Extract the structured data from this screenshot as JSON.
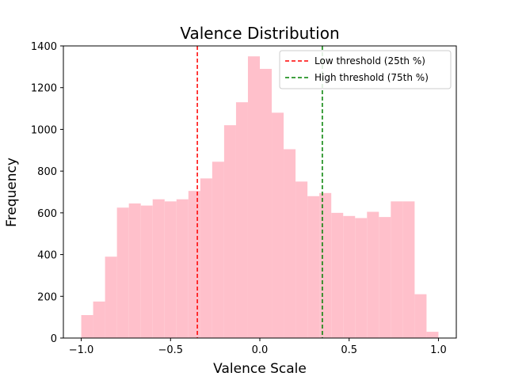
{
  "chart_data": {
    "type": "bar",
    "title": "Valence Distribution",
    "xlabel": "Valence Scale",
    "ylabel": "Frequency",
    "xlim": [
      -1.1,
      1.1
    ],
    "ylim": [
      0,
      1400
    ],
    "xticks": [
      -1.0,
      -0.5,
      0.0,
      0.5,
      1.0
    ],
    "xtick_labels": [
      "−1.0",
      "−0.5",
      "0.0",
      "0.5",
      "1.0"
    ],
    "yticks": [
      0,
      200,
      400,
      600,
      800,
      1000,
      1200,
      1400
    ],
    "ytick_labels": [
      "0",
      "200",
      "400",
      "600",
      "800",
      "1000",
      "1200",
      "1400"
    ],
    "bar_color": "#ffc0cb",
    "bin_edges": [
      -1.0,
      -0.9333,
      -0.8667,
      -0.8,
      -0.7333,
      -0.6667,
      -0.6,
      -0.5333,
      -0.4667,
      -0.4,
      -0.3333,
      -0.2667,
      -0.2,
      -0.1333,
      -0.0667,
      0.0,
      0.0667,
      0.1333,
      0.2,
      0.2667,
      0.3333,
      0.4,
      0.4667,
      0.5333,
      0.6,
      0.6667,
      0.7333,
      0.8,
      0.8667,
      0.9333,
      1.0
    ],
    "counts": [
      110,
      175,
      390,
      625,
      645,
      635,
      665,
      655,
      665,
      705,
      765,
      845,
      1020,
      1130,
      1350,
      1290,
      1080,
      905,
      750,
      680,
      695,
      600,
      585,
      575,
      605,
      580,
      655,
      655,
      210,
      30
    ],
    "thresholds": [
      {
        "label": "Low threshold (25th %)",
        "x": -0.35,
        "color": "#ff0000"
      },
      {
        "label": "High threshold (75th %)",
        "x": 0.35,
        "color": "#008000"
      }
    ],
    "legend_position": "top-right",
    "grid": false
  }
}
